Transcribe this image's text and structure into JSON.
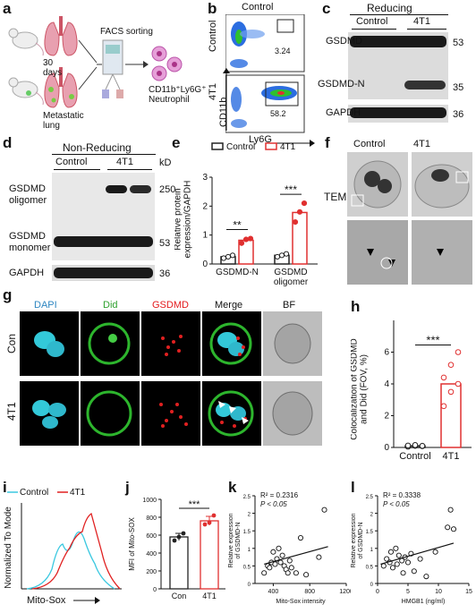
{
  "panels": {
    "a": {
      "letter": "a",
      "days": "30\ndays",
      "facs": "FACS sorting",
      "metastatic": "Metastatic\nlung",
      "neutrophil": "CD11b⁺Ly6G⁺\nNeutrophil"
    },
    "b": {
      "letter": "b",
      "title": "Control",
      "row1": "Control",
      "row2": "4T1",
      "gate1": "3.24",
      "gate2": "58.2",
      "yaxis": "CD11b",
      "xaxis": "Ly6G"
    },
    "c": {
      "letter": "c",
      "header": "Reducing",
      "lanes": [
        "Control",
        "4T1"
      ],
      "rows": [
        "GSDMD",
        "GSDMD-N",
        "GAPDH"
      ],
      "kd": [
        "53",
        "35",
        "36"
      ]
    },
    "d": {
      "letter": "d",
      "header": "Non-Reducing",
      "lanes": [
        "Control",
        "4T1"
      ],
      "kd_label": "kD",
      "rows": [
        "GSDMD\noligomer",
        "GSDMD\nmonomer",
        "GAPDH"
      ],
      "kd": [
        "250",
        "53",
        "36"
      ]
    },
    "e": {
      "letter": "e"
    },
    "f": {
      "letter": "f",
      "lanes": [
        "Control",
        "4T1"
      ],
      "row": "TEM"
    },
    "g": {
      "letter": "g",
      "channels": [
        "DAPI",
        "Did",
        "GSDMD",
        "Merge",
        "BF"
      ],
      "channel_colors": [
        "#2e86c1",
        "#2ca02c",
        "#e31a1c",
        "#111111",
        "#111111"
      ],
      "rows": [
        "Con",
        "4T1"
      ]
    },
    "h": {
      "letter": "h"
    },
    "i": {
      "letter": "i"
    },
    "j": {
      "letter": "j"
    },
    "k": {
      "letter": "k"
    },
    "l": {
      "letter": "l"
    }
  },
  "chart_data": [
    {
      "id": "e",
      "type": "bar",
      "categories": [
        "GSDMD-N",
        "GSDMD\noligomer"
      ],
      "series": [
        {
          "name": "Control",
          "values": [
            0.25,
            0.3
          ],
          "color": "#222222",
          "points": [
            [
              0.2,
              0.25,
              0.3
            ],
            [
              0.25,
              0.3,
              0.35
            ]
          ]
        },
        {
          "name": "4T1",
          "values": [
            0.82,
            1.78
          ],
          "color": "#e03030",
          "points": [
            [
              0.72,
              0.85,
              0.88
            ],
            [
              1.45,
              1.8,
              2.1
            ]
          ]
        }
      ],
      "ylabel": "Relative protein\nexpression/GAPDH",
      "ylim": [
        0,
        3
      ],
      "yticks": [
        0,
        1,
        2,
        3
      ],
      "significance": [
        "**",
        "***"
      ],
      "legend": "top"
    },
    {
      "id": "h",
      "type": "bar",
      "categories": [
        "Control",
        "4T1"
      ],
      "values": [
        0.1,
        4.0
      ],
      "colors": [
        "#222222",
        "#e03030"
      ],
      "points": [
        [
          0.05,
          0.1,
          0.08,
          0.12,
          0.15,
          0.1
        ],
        [
          2.6,
          3.5,
          4.0,
          4.4,
          5.2,
          6.0
        ]
      ],
      "ylabel": "Colocalization of GSDMD\nand Did (FOV, %)",
      "ylim": [
        0,
        8
      ],
      "yticks": [
        0,
        2,
        4,
        6
      ],
      "significance": "***"
    },
    {
      "id": "i",
      "type": "line",
      "series": [
        {
          "name": "Control",
          "color": "#3ac8e0"
        },
        {
          "name": "4T1",
          "color": "#e02020"
        }
      ],
      "ylabel": "Normalized To Mode",
      "xlabel": "Mito-Sox",
      "legend": "top"
    },
    {
      "id": "j",
      "type": "bar",
      "categories": [
        "Con",
        "4T1"
      ],
      "values": [
        580,
        760
      ],
      "errors": [
        40,
        50
      ],
      "colors": [
        "#222222",
        "#e03030"
      ],
      "points": [
        [
          540,
          580,
          620
        ],
        [
          720,
          740,
          820
        ]
      ],
      "ylabel": "MFI of Mito-SOX",
      "ylim": [
        0,
        1000
      ],
      "yticks": [
        0,
        200,
        400,
        600,
        800,
        1000
      ],
      "significance": "***"
    },
    {
      "id": "k",
      "type": "scatter",
      "xlabel": "Mito-Sox intensity",
      "ylabel": "Relative expression\nof GSDMD-N",
      "xlim": [
        200,
        1200
      ],
      "ylim": [
        0,
        2.5
      ],
      "xticks": [
        400,
        800,
        1200
      ],
      "yticks": [
        0,
        0.5,
        1.0,
        1.5,
        2.0,
        2.5
      ],
      "annotation_r2": "R² = 0.2316",
      "annotation_p": "P < 0.05",
      "x": [
        300,
        340,
        360,
        380,
        400,
        420,
        440,
        460,
        480,
        500,
        520,
        540,
        560,
        580,
        600,
        650,
        700,
        760,
        900,
        960
      ],
      "y": [
        0.3,
        0.5,
        0.45,
        0.6,
        0.9,
        0.55,
        0.7,
        1.0,
        0.6,
        0.8,
        0.5,
        0.4,
        0.3,
        0.65,
        0.45,
        0.3,
        1.3,
        0.25,
        0.75,
        2.1
      ],
      "fit": [
        [
          300,
          0.55
        ],
        [
          1000,
          1.05
        ]
      ]
    },
    {
      "id": "l",
      "type": "scatter",
      "xlabel": "HMGB1 (ng/ml)",
      "ylabel": "Relative expression\nof GSDMD-N",
      "xlim": [
        0,
        15
      ],
      "ylim": [
        0,
        2.5
      ],
      "xticks": [
        0,
        5,
        10,
        15
      ],
      "yticks": [
        0,
        0.5,
        1.0,
        1.5,
        2.0,
        2.5
      ],
      "annotation_r2": "R² = 0.3338",
      "annotation_p": "P < 0.05",
      "x": [
        1.0,
        1.5,
        2.0,
        2.2,
        2.5,
        3.0,
        3.2,
        3.5,
        4.0,
        4.2,
        4.5,
        5.0,
        5.5,
        6.0,
        7.0,
        8.0,
        9.5,
        11.5,
        12.0,
        12.5
      ],
      "y": [
        0.5,
        0.7,
        0.6,
        0.9,
        0.45,
        1.0,
        0.55,
        0.8,
        0.65,
        0.3,
        0.75,
        0.6,
        0.85,
        0.35,
        0.7,
        0.2,
        0.9,
        1.6,
        2.1,
        1.55
      ],
      "fit": [
        [
          0.5,
          0.55
        ],
        [
          12.5,
          1.15
        ]
      ]
    }
  ]
}
